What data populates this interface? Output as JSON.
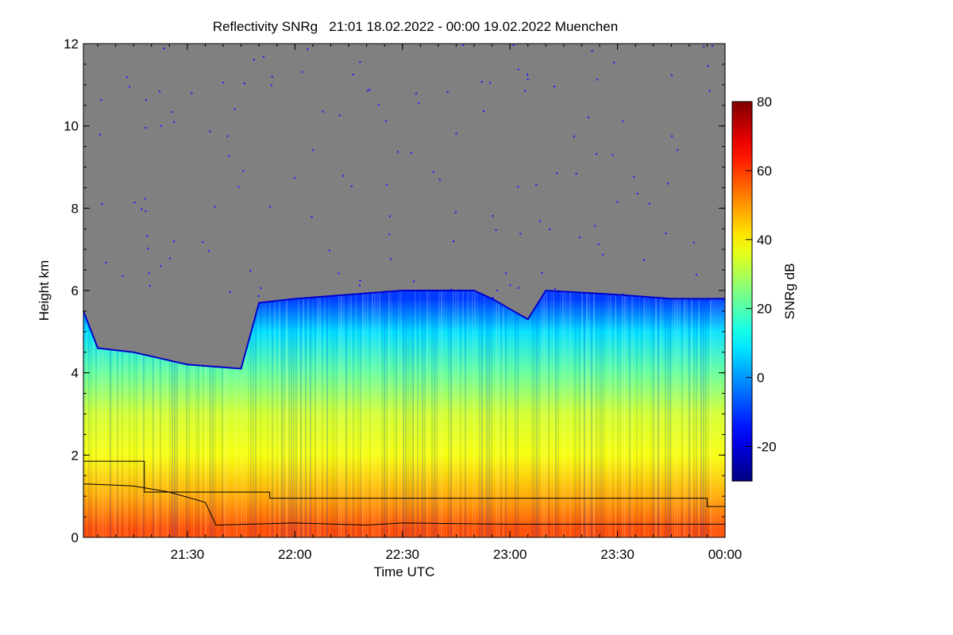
{
  "chart_data": {
    "type": "heatmap",
    "title": "Reflectivity SNRg   21:01 18.02.2022 - 00:00 19.02.2022 Muenchen",
    "xlabel": "Time UTC",
    "ylabel": "Height km",
    "x_ticks": [
      {
        "label": "21:30",
        "minutes": 29
      },
      {
        "label": "22:00",
        "minutes": 59
      },
      {
        "label": "22:30",
        "minutes": 89
      },
      {
        "label": "23:00",
        "minutes": 119
      },
      {
        "label": "23:30",
        "minutes": 149
      },
      {
        "label": "00:00",
        "minutes": 179
      }
    ],
    "x_range_minutes_since_start": [
      0,
      179
    ],
    "xlim": [
      "21:01",
      "00:00"
    ],
    "ylim": [
      0,
      12
    ],
    "y_ticks": [
      0,
      2,
      4,
      6,
      8,
      10,
      12
    ],
    "colorbar": {
      "label": "SNRg dB",
      "range": [
        -30,
        80
      ],
      "ticks": [
        -20,
        0,
        20,
        40,
        60,
        80
      ],
      "colormap": "jet"
    },
    "colors": {
      "no_signal": "#808080",
      "line": "#000000",
      "noise_dots": "#1a1aff"
    },
    "cloud_top_km": [
      {
        "t": "21:01",
        "km": 5.5
      },
      {
        "t": "21:05",
        "km": 4.6
      },
      {
        "t": "21:15",
        "km": 4.5
      },
      {
        "t": "21:30",
        "km": 4.2
      },
      {
        "t": "21:45",
        "km": 4.1
      },
      {
        "t": "21:50",
        "km": 5.7
      },
      {
        "t": "22:00",
        "km": 5.8
      },
      {
        "t": "22:30",
        "km": 6.0
      },
      {
        "t": "22:50",
        "km": 6.0
      },
      {
        "t": "22:55",
        "km": 5.8
      },
      {
        "t": "23:05",
        "km": 5.3
      },
      {
        "t": "23:10",
        "km": 6.0
      },
      {
        "t": "23:30",
        "km": 5.9
      },
      {
        "t": "23:45",
        "km": 5.8
      },
      {
        "t": "00:00",
        "km": 5.8
      }
    ],
    "mean_snr_db_by_height": [
      {
        "km": 0.2,
        "db": 58
      },
      {
        "km": 1.0,
        "db": 48
      },
      {
        "km": 2.0,
        "db": 38
      },
      {
        "km": 3.0,
        "db": 34
      },
      {
        "km": 4.0,
        "db": 22
      },
      {
        "km": 5.0,
        "db": 8
      },
      {
        "km": 5.8,
        "db": -10
      }
    ],
    "step_line_km": [
      {
        "t": "21:01",
        "km": 1.85
      },
      {
        "t": "21:18",
        "km": 1.1
      },
      {
        "t": "21:38",
        "km": 1.1
      },
      {
        "t": "21:53",
        "km": 0.95
      },
      {
        "t": "23:55",
        "km": 0.75
      },
      {
        "t": "00:00",
        "km": 0.75
      }
    ],
    "boundary_line_km": [
      {
        "t": "21:01",
        "km": 1.3
      },
      {
        "t": "21:15",
        "km": 1.25
      },
      {
        "t": "21:25",
        "km": 1.1
      },
      {
        "t": "21:35",
        "km": 0.85
      },
      {
        "t": "21:38",
        "km": 0.3
      },
      {
        "t": "22:00",
        "km": 0.35
      },
      {
        "t": "22:20",
        "km": 0.3
      },
      {
        "t": "22:30",
        "km": 0.35
      },
      {
        "t": "23:00",
        "km": 0.32
      },
      {
        "t": "23:30",
        "km": 0.32
      },
      {
        "t": "23:55",
        "km": 0.32
      },
      {
        "t": "00:00",
        "km": 0.32
      }
    ]
  }
}
